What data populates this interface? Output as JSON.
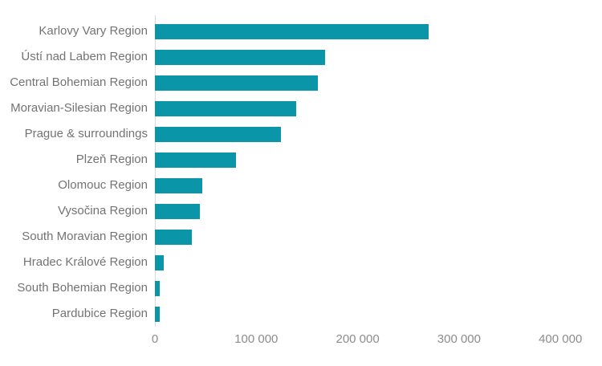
{
  "chart_data": {
    "type": "bar",
    "orientation": "horizontal",
    "title": "",
    "categories": [
      "Karlovy Vary Region",
      "Ústí nad Labem Region",
      "Central Bohemian Region",
      "Moravian-Silesian Region",
      "Prague & surroundings",
      "Plzeň Region",
      "Olomouc Region",
      "Vysočina Region",
      "South Moravian Region",
      "Hradec Králové Region",
      "South Bohemian Region",
      "Pardubice Region"
    ],
    "values": [
      270000,
      168000,
      161000,
      139000,
      124000,
      80000,
      47000,
      44000,
      36000,
      9000,
      5000,
      4800
    ],
    "xlabel": "",
    "ylabel": "",
    "xlim": [
      0,
      400000
    ],
    "x_ticks": [
      "0",
      "100 000",
      "200 000",
      "300 000",
      "400 000"
    ],
    "x_tick_values": [
      0,
      100000,
      200000,
      300000,
      400000
    ],
    "grid": false,
    "legend": false,
    "sort": "descending",
    "colors": {
      "bar": "#0A95A9",
      "category_label": "#737373",
      "tick_label": "#8C8C8C",
      "axis_line": "#D9D9D9",
      "background": "#FFFFFF"
    }
  }
}
